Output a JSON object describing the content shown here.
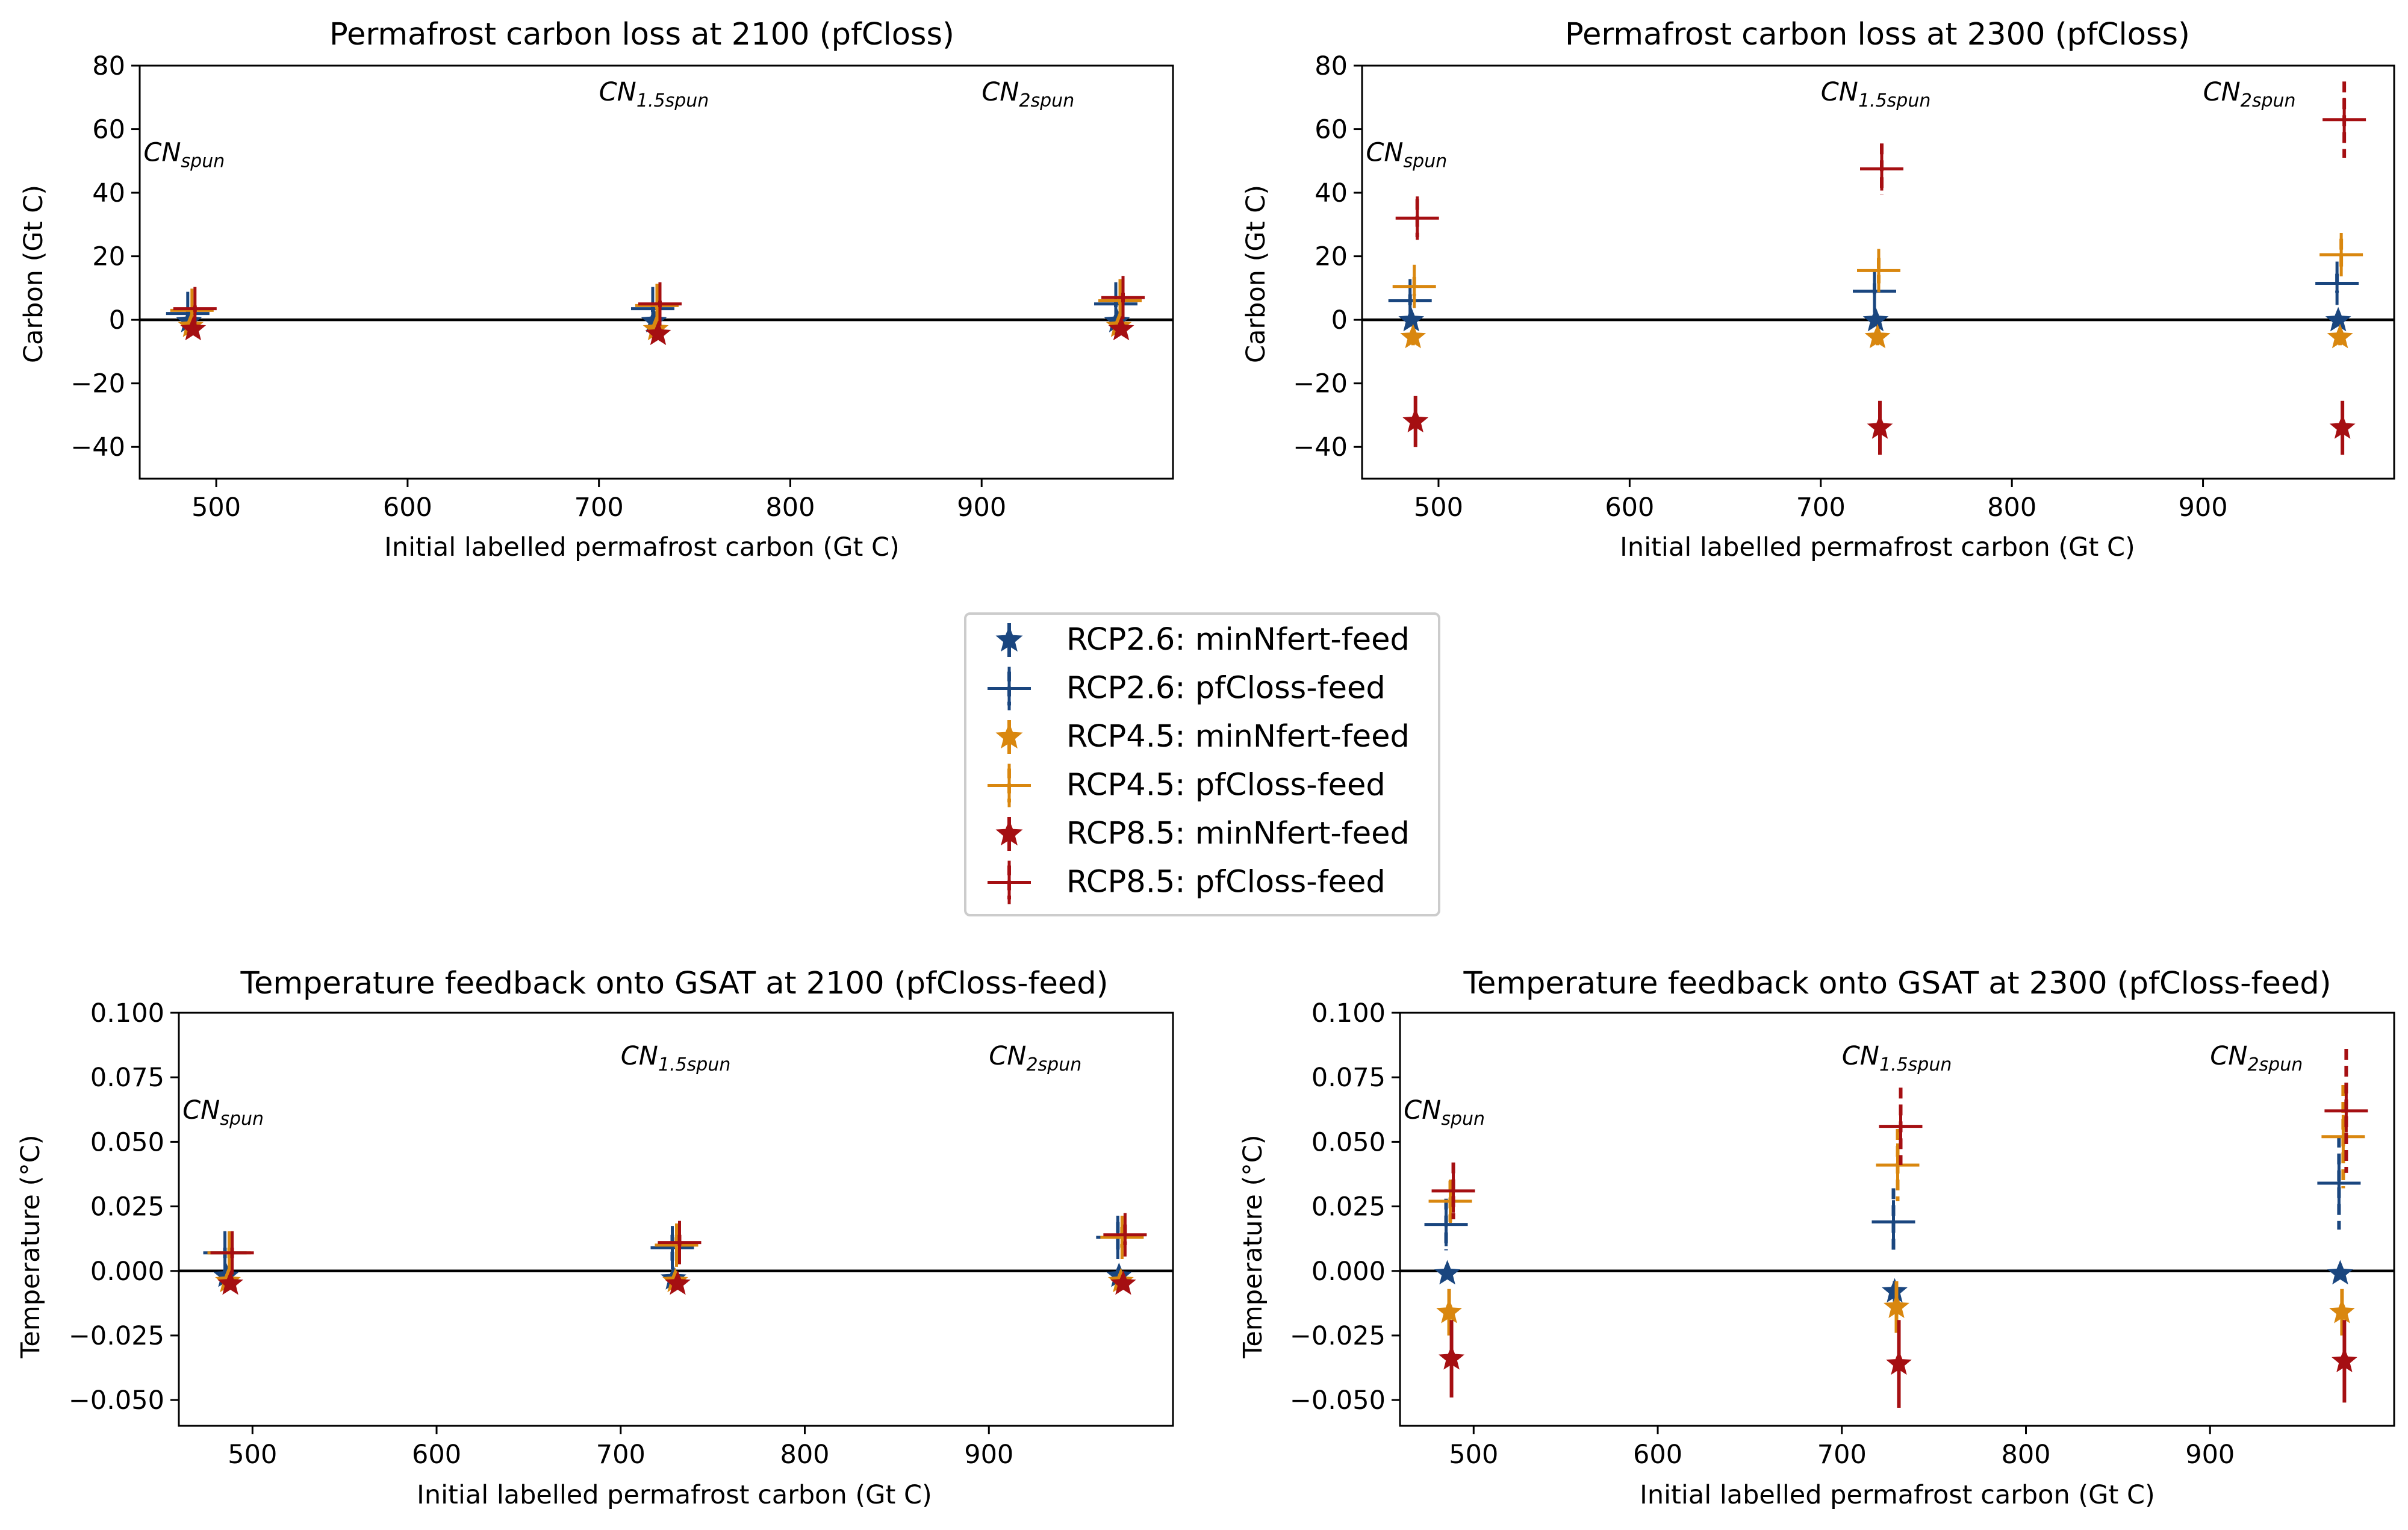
{
  "colors": {
    "rcp26": "#1a467f",
    "rcp45": "#d9870f",
    "rcp85": "#a50f12",
    "zero_line": "#000000"
  },
  "legend": {
    "entries": [
      {
        "label": "RCP2.6: minNfert-feed",
        "color": "#1a467f",
        "marker": "star"
      },
      {
        "label": "RCP2.6: pfCloss-feed",
        "color": "#1a467f",
        "marker": "plus"
      },
      {
        "label": "RCP4.5: minNfert-feed",
        "color": "#d9870f",
        "marker": "star"
      },
      {
        "label": "RCP4.5: pfCloss-feed",
        "color": "#d9870f",
        "marker": "plus"
      },
      {
        "label": "RCP8.5: minNfert-feed",
        "color": "#a50f12",
        "marker": "star"
      },
      {
        "label": "RCP8.5: pfCloss-feed",
        "color": "#a50f12",
        "marker": "plus"
      }
    ]
  },
  "chart_data": [
    {
      "type": "scatter",
      "title": "Permafrost carbon loss at 2100 (pfCloss)",
      "xlabel": "Initial labelled permafrost carbon (Gt C)",
      "ylabel": "Carbon (Gt C)",
      "xlim": [
        460,
        1000
      ],
      "ylim": [
        -50,
        80
      ],
      "xticks": [
        500,
        600,
        700,
        800,
        900
      ],
      "yticks": [
        -40,
        -20,
        0,
        20,
        40,
        60,
        80
      ],
      "ytick_labels": [
        "−40",
        "−20",
        "0",
        "20",
        "40",
        "60",
        "80"
      ],
      "zero_line": 0,
      "annotations": [
        {
          "main": "CN",
          "sub": "spun",
          "x": 462,
          "y": 50
        },
        {
          "main": "CN",
          "sub": "1.5spun",
          "x": 700,
          "y": 69
        },
        {
          "main": "CN",
          "sub": "2spun",
          "x": 900,
          "y": 69
        }
      ],
      "series": [
        {
          "name": "RCP2.6: minNfert-feed",
          "marker": "star",
          "color": "#1a467f",
          "x": [
            487,
            730,
            972
          ],
          "y": [
            -0.5,
            -0.5,
            -0.5
          ],
          "err": [
            1.5,
            1.5,
            1.5
          ]
        },
        {
          "name": "RCP2.6: pfCloss-feed",
          "marker": "plus",
          "color": "#1a467f",
          "x": [
            487,
            730,
            972
          ],
          "y": [
            2,
            3.5,
            5
          ],
          "err": [
            1,
            1,
            1
          ]
        },
        {
          "name": "RCP4.5: minNfert-feed",
          "marker": "star",
          "color": "#d9870f",
          "x": [
            487,
            730,
            972
          ],
          "y": [
            -2,
            -3,
            -2
          ],
          "err": [
            1.5,
            1.5,
            1.5
          ]
        },
        {
          "name": "RCP4.5: pfCloss-feed",
          "marker": "plus",
          "color": "#d9870f",
          "x": [
            487,
            730,
            972
          ],
          "y": [
            3,
            4.5,
            6
          ],
          "err": [
            1,
            1,
            1
          ]
        },
        {
          "name": "RCP8.5: minNfert-feed",
          "marker": "star",
          "color": "#a50f12",
          "x": [
            487,
            730,
            972
          ],
          "y": [
            -3,
            -4.5,
            -3
          ],
          "err": [
            1.5,
            1.5,
            1.5
          ]
        },
        {
          "name": "RCP8.5: pfCloss-feed",
          "marker": "plus",
          "color": "#a50f12",
          "x": [
            487,
            730,
            972
          ],
          "y": [
            3.5,
            5,
            7
          ],
          "err": [
            1,
            1,
            1.5
          ]
        }
      ]
    },
    {
      "type": "scatter",
      "title": "Permafrost carbon loss at 2300 (pfCloss)",
      "xlabel": "Initial labelled permafrost carbon (Gt C)",
      "ylabel": "Carbon (Gt C)",
      "xlim": [
        460,
        1000
      ],
      "ylim": [
        -50,
        80
      ],
      "xticks": [
        500,
        600,
        700,
        800,
        900
      ],
      "yticks": [
        -40,
        -20,
        0,
        20,
        40,
        60,
        80
      ],
      "ytick_labels": [
        "−40",
        "−20",
        "0",
        "20",
        "40",
        "60",
        "80"
      ],
      "zero_line": 0,
      "annotations": [
        {
          "main": "CN",
          "sub": "spun",
          "x": 462,
          "y": 50
        },
        {
          "main": "CN",
          "sub": "1.5spun",
          "x": 700,
          "y": 69
        },
        {
          "main": "CN",
          "sub": "2spun",
          "x": 900,
          "y": 69
        }
      ],
      "series": [
        {
          "name": "RCP2.6: minNfert-feed",
          "marker": "star",
          "color": "#1a467f",
          "x": [
            487,
            730,
            972
          ],
          "y": [
            -0.2,
            -0.2,
            -0.2
          ],
          "err": [
            1.5,
            1.5,
            1.5
          ]
        },
        {
          "name": "RCP2.6: pfCloss-feed",
          "marker": "plus",
          "color": "#1a467f",
          "x": [
            487,
            730,
            972
          ],
          "y": [
            6,
            9,
            11.5
          ],
          "err": [
            2,
            2.5,
            3
          ]
        },
        {
          "name": "RCP4.5: minNfert-feed",
          "marker": "star",
          "color": "#d9870f",
          "x": [
            487,
            730,
            972
          ],
          "y": [
            -5.5,
            -5.5,
            -5.5
          ],
          "err": [
            2.5,
            2.5,
            2.5
          ]
        },
        {
          "name": "RCP4.5: pfCloss-feed",
          "marker": "plus",
          "color": "#d9870f",
          "x": [
            487,
            730,
            972
          ],
          "y": [
            10.5,
            15.5,
            20.5
          ],
          "err": [
            3,
            4,
            5
          ]
        },
        {
          "name": "RCP8.5: minNfert-feed",
          "marker": "star",
          "color": "#a50f12",
          "x": [
            487,
            730,
            972
          ],
          "y": [
            -32,
            -34,
            -34
          ],
          "err": [
            8,
            8.5,
            8.5
          ]
        },
        {
          "name": "RCP8.5: pfCloss-feed",
          "marker": "plus",
          "color": "#a50f12",
          "x": [
            487,
            730,
            972
          ],
          "y": [
            32,
            47.5,
            63
          ],
          "err": [
            6,
            8,
            12
          ]
        }
      ]
    },
    {
      "type": "scatter",
      "title": "Temperature feedback onto GSAT at 2100 (pfCloss-feed)",
      "xlabel": "Initial labelled permafrost carbon (Gt C)",
      "ylabel": "Temperature (°C)",
      "xlim": [
        460,
        1000
      ],
      "ylim": [
        -0.06,
        0.1
      ],
      "xticks": [
        500,
        600,
        700,
        800,
        900
      ],
      "yticks": [
        -0.05,
        -0.025,
        0,
        0.025,
        0.05,
        0.075,
        0.1
      ],
      "ytick_labels": [
        "−0.050",
        "−0.025",
        "0.000",
        "0.025",
        "0.050",
        "0.075",
        "0.100"
      ],
      "zero_line": 0,
      "annotations": [
        {
          "main": "CN",
          "sub": "spun",
          "x": 462,
          "y": 0.059
        },
        {
          "main": "CN",
          "sub": "1.5spun",
          "x": 700,
          "y": 0.08
        },
        {
          "main": "CN",
          "sub": "2spun",
          "x": 900,
          "y": 0.08
        }
      ],
      "series": [
        {
          "name": "RCP2.6: minNfert-feed",
          "marker": "star",
          "color": "#1a467f",
          "x": [
            487,
            730,
            972
          ],
          "y": [
            -0.002,
            -0.003,
            -0.002
          ],
          "err": [
            0.002,
            0.002,
            0.002
          ]
        },
        {
          "name": "RCP2.6: pfCloss-feed",
          "marker": "plus",
          "color": "#1a467f",
          "x": [
            487,
            730,
            972
          ],
          "y": [
            0.007,
            0.009,
            0.013
          ],
          "err": [
            0.002,
            0.005,
            0.006
          ]
        },
        {
          "name": "RCP4.5: minNfert-feed",
          "marker": "star",
          "color": "#d9870f",
          "x": [
            487,
            730,
            972
          ],
          "y": [
            -0.004,
            -0.004,
            -0.004
          ],
          "err": [
            0.002,
            0.002,
            0.002
          ]
        },
        {
          "name": "RCP4.5: pfCloss-feed",
          "marker": "plus",
          "color": "#d9870f",
          "x": [
            487,
            730,
            972
          ],
          "y": [
            0.007,
            0.01,
            0.013
          ],
          "err": [
            0.002,
            0.003,
            0.004
          ]
        },
        {
          "name": "RCP8.5: minNfert-feed",
          "marker": "star",
          "color": "#a50f12",
          "x": [
            487,
            730,
            972
          ],
          "y": [
            -0.005,
            -0.005,
            -0.005
          ],
          "err": [
            0.002,
            0.002,
            0.002
          ]
        },
        {
          "name": "RCP8.5: pfCloss-feed",
          "marker": "plus",
          "color": "#a50f12",
          "x": [
            487,
            730,
            972
          ],
          "y": [
            0.007,
            0.011,
            0.014
          ],
          "err": [
            0.002,
            0.003,
            0.004
          ]
        }
      ]
    },
    {
      "type": "scatter",
      "title": "Temperature feedback onto GSAT at 2300 (pfCloss-feed)",
      "xlabel": "Initial labelled permafrost carbon (Gt C)",
      "ylabel": "Temperature (°C)",
      "xlim": [
        460,
        1000
      ],
      "ylim": [
        -0.06,
        0.1
      ],
      "xticks": [
        500,
        600,
        700,
        800,
        900
      ],
      "yticks": [
        -0.05,
        -0.025,
        0,
        0.025,
        0.05,
        0.075,
        0.1
      ],
      "ytick_labels": [
        "−0.050",
        "−0.025",
        "0.000",
        "0.025",
        "0.050",
        "0.075",
        "0.100"
      ],
      "zero_line": 0,
      "annotations": [
        {
          "main": "CN",
          "sub": "spun",
          "x": 462,
          "y": 0.059
        },
        {
          "main": "CN",
          "sub": "1.5spun",
          "x": 700,
          "y": 0.08
        },
        {
          "main": "CN",
          "sub": "2spun",
          "x": 900,
          "y": 0.08
        }
      ],
      "series": [
        {
          "name": "RCP2.6: minNfert-feed",
          "marker": "star",
          "color": "#1a467f",
          "x": [
            487,
            730,
            972
          ],
          "y": [
            -0.001,
            -0.008,
            -0.001
          ],
          "err": [
            0.002,
            0.004,
            0.002
          ]
        },
        {
          "name": "RCP2.6: pfCloss-feed",
          "marker": "plus",
          "color": "#1a467f",
          "x": [
            487,
            730,
            972
          ],
          "y": [
            0.018,
            0.019,
            0.034
          ],
          "err": [
            0.01,
            0.013,
            0.018
          ]
        },
        {
          "name": "RCP4.5: minNfert-feed",
          "marker": "star",
          "color": "#d9870f",
          "x": [
            487,
            730,
            972
          ],
          "y": [
            -0.016,
            -0.014,
            -0.016
          ],
          "err": [
            0.009,
            0.01,
            0.009
          ]
        },
        {
          "name": "RCP4.5: pfCloss-feed",
          "marker": "plus",
          "color": "#d9870f",
          "x": [
            487,
            730,
            972
          ],
          "y": [
            0.027,
            0.041,
            0.052
          ],
          "err": [
            0.008,
            0.014,
            0.02
          ]
        },
        {
          "name": "RCP8.5: minNfert-feed",
          "marker": "star",
          "color": "#a50f12",
          "x": [
            487,
            730,
            972
          ],
          "y": [
            -0.034,
            -0.036,
            -0.035
          ],
          "err": [
            0.015,
            0.017,
            0.016
          ]
        },
        {
          "name": "RCP8.5: pfCloss-feed",
          "marker": "plus",
          "color": "#a50f12",
          "x": [
            487,
            730,
            972
          ],
          "y": [
            0.031,
            0.056,
            0.062
          ],
          "err": [
            0.011,
            0.015,
            0.024
          ]
        }
      ]
    }
  ]
}
